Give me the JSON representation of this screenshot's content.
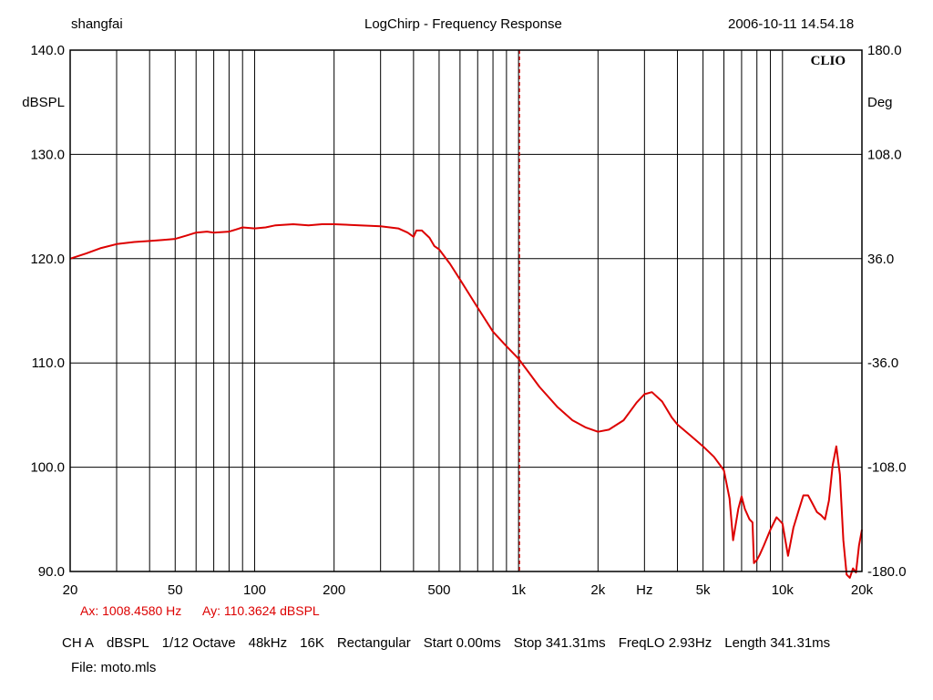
{
  "header": {
    "user": "shangfai",
    "title": "LogChirp - Frequency Response",
    "datetime": "2006-10-11 14.54.18"
  },
  "logo": "CLIO",
  "cursor": {
    "ax": "Ax: 1008.4580 Hz",
    "ay": "Ay: 110.3624 dBSPL"
  },
  "settings": {
    "items": [
      "CH A",
      "dBSPL",
      "1/12 Octave",
      "48kHz",
      "16K",
      "Rectangular",
      "Start 0.00ms",
      "Stop 341.31ms",
      "FreqLO 2.93Hz",
      "Length 341.31ms"
    ]
  },
  "file": "File: moto.mls",
  "colors": {
    "trace": "#dd0000",
    "grid": "#000000",
    "cursor_readout": "#dd0000"
  },
  "chart_data": {
    "type": "line",
    "title": "LogChirp - Frequency Response",
    "xscale": "log",
    "xlim": [
      20,
      20000
    ],
    "ylim": [
      90,
      140
    ],
    "y2lim": [
      -180,
      180
    ],
    "ylabel": "dBSPL",
    "y2label": "Deg",
    "x_tick_labels": [
      {
        "value": 20,
        "label": "20"
      },
      {
        "value": 50,
        "label": "50"
      },
      {
        "value": 100,
        "label": "100"
      },
      {
        "value": 200,
        "label": "200"
      },
      {
        "value": 500,
        "label": "500"
      },
      {
        "value": 1000,
        "label": "1k"
      },
      {
        "value": 2000,
        "label": "2k"
      },
      {
        "value": 3000,
        "label": "Hz"
      },
      {
        "value": 5000,
        "label": "5k"
      },
      {
        "value": 10000,
        "label": "10k"
      },
      {
        "value": 20000,
        "label": "20k"
      }
    ],
    "y_ticks": [
      "140.0",
      "130.0",
      "120.0",
      "110.0",
      "100.0",
      "90.0"
    ],
    "y2_ticks": [
      "180.0",
      "108.0",
      "36.0",
      "-36.0",
      "-108.0",
      "-180.0"
    ],
    "grid": true,
    "cursor_x": 1008.458,
    "series": [
      {
        "x": [
          20,
          23,
          26,
          30,
          35,
          40,
          45,
          50,
          55,
          60,
          66,
          70,
          80,
          85,
          90,
          100,
          110,
          120,
          140,
          160,
          180,
          200,
          250,
          300,
          350,
          380,
          400,
          410,
          430,
          460,
          480,
          500,
          550,
          600,
          700,
          800,
          900,
          1000,
          1100,
          1200,
          1400,
          1600,
          1800,
          2000,
          2200,
          2500,
          2800,
          3000,
          3200,
          3500,
          3800,
          4000,
          4500,
          5000,
          5500,
          6000,
          6300,
          6500,
          6800,
          7000,
          7200,
          7500,
          7700,
          7800,
          8000,
          8200,
          8500,
          9000,
          9500,
          10000,
          10500,
          11000,
          11500,
          12000,
          12500,
          13000,
          13500,
          14000,
          14500,
          15000,
          15500,
          16000,
          16500,
          17000,
          17500,
          18000,
          18500,
          19000,
          19500,
          20000
        ],
        "y": [
          120.0,
          120.5,
          121.0,
          121.4,
          121.6,
          121.7,
          121.8,
          121.9,
          122.2,
          122.5,
          122.6,
          122.5,
          122.6,
          122.8,
          123.0,
          122.9,
          123.0,
          123.2,
          123.3,
          123.2,
          123.3,
          123.3,
          123.2,
          123.1,
          122.9,
          122.5,
          122.1,
          122.7,
          122.7,
          122.0,
          121.2,
          120.9,
          119.5,
          118.0,
          115.3,
          113.0,
          111.6,
          110.4,
          109.0,
          107.7,
          105.8,
          104.5,
          103.8,
          103.4,
          103.6,
          104.5,
          106.2,
          107.0,
          107.2,
          106.3,
          104.8,
          104.1,
          103.0,
          102.0,
          101.0,
          99.7,
          97.0,
          93.0,
          96.0,
          97.2,
          96.0,
          95.0,
          94.7,
          90.8,
          91.1,
          91.6,
          92.5,
          94.0,
          95.2,
          94.6,
          91.5,
          94.2,
          95.8,
          97.3,
          97.3,
          96.5,
          95.7,
          95.4,
          95.0,
          96.8,
          100.2,
          102.0,
          99.3,
          93.0,
          89.7,
          89.4,
          90.3,
          89.9,
          92.5,
          94.0
        ]
      }
    ]
  }
}
